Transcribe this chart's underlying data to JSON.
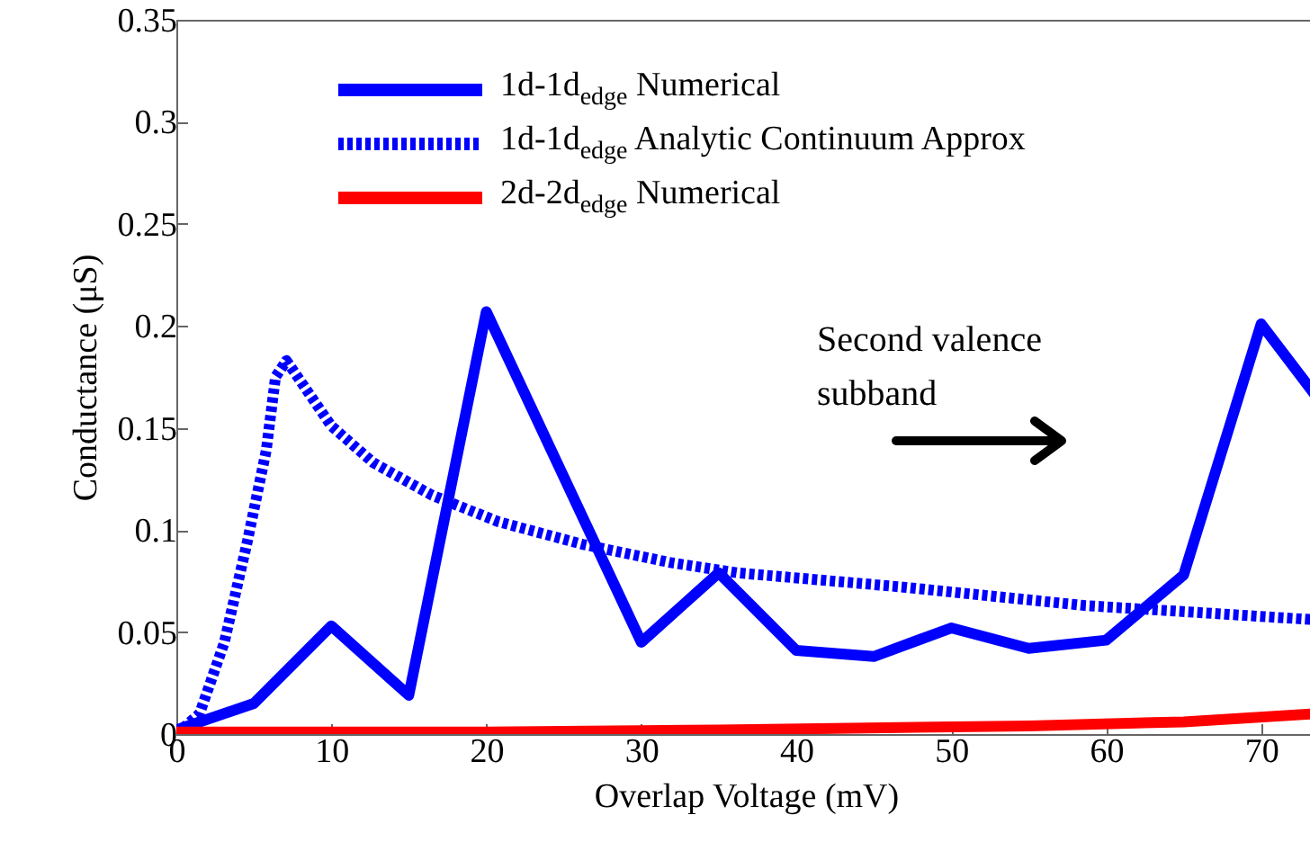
{
  "chart_data": {
    "type": "line",
    "xlabel": "Overlap Voltage (mV)",
    "ylabel": "Conductance (μS)",
    "xlim": [
      0,
      73.5
    ],
    "ylim": [
      0,
      0.35
    ],
    "xticks": [
      0,
      10,
      20,
      30,
      40,
      50,
      60,
      70
    ],
    "yticks": [
      0,
      0.05,
      0.1,
      0.15,
      0.2,
      0.25,
      0.3,
      0.35
    ],
    "legend": "top left",
    "grid": false,
    "series": [
      {
        "name": "1d-1d$_{edge}$ Numerical",
        "color": "#0000ff",
        "line_style": "solid",
        "x": [
          0,
          5,
          10,
          15,
          20,
          30,
          35,
          40,
          45,
          50,
          55,
          60,
          65,
          70,
          73.5
        ],
        "values": [
          0.002,
          0.015,
          0.053,
          0.019,
          0.207,
          0.045,
          0.079,
          0.041,
          0.038,
          0.052,
          0.042,
          0.046,
          0.078,
          0.201,
          0.166
        ]
      },
      {
        "name": "1d-1d$_{edge}$ Analytic Continuum Approx",
        "color": "#0000ff",
        "line_style": "dotted",
        "x": [
          0,
          1.5,
          3.1,
          4.6,
          5.8,
          6.4,
          7.1,
          10,
          12.7,
          16.5,
          20.8,
          26.2,
          31.9,
          36.2,
          46.9,
          58.6,
          73.5
        ],
        "values": [
          0,
          0.01,
          0.045,
          0.095,
          0.139,
          0.175,
          0.183,
          0.151,
          0.133,
          0.117,
          0.104,
          0.093,
          0.084,
          0.079,
          0.072,
          0.063,
          0.056
        ]
      },
      {
        "name": "2d-2d$_{edge}$ Numerical",
        "color": "#ff0000",
        "line_style": "solid",
        "x": [
          0,
          20,
          35,
          55,
          65,
          73.5
        ],
        "values": [
          0.001,
          0.001,
          0.002,
          0.004,
          0.006,
          0.01
        ]
      }
    ],
    "annotations": [
      "Second valence\nsubband"
    ]
  }
}
